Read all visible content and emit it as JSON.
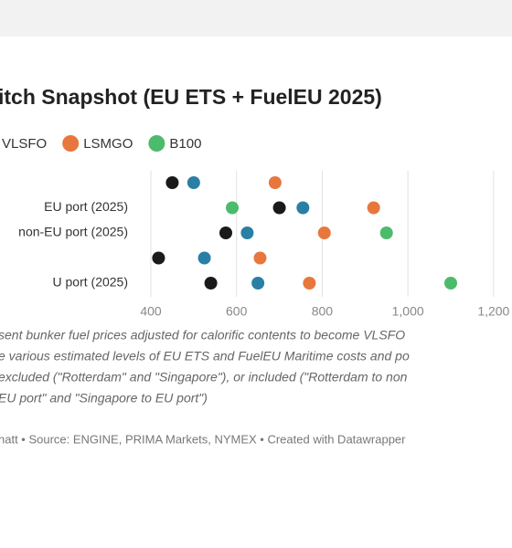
{
  "chart_data": {
    "type": "dot",
    "title": "itch Snapshot (EU ETS + FuelEU 2025)",
    "categories": [
      null,
      "EU port (2025)",
      "non-EU port (2025)",
      null,
      "U port (2025)"
    ],
    "series": [
      {
        "name": null,
        "color": "#1a1a1a",
        "values": [
          450,
          700,
          575,
          418,
          540
        ]
      },
      {
        "name": "VLSFO",
        "color": "#2a7fa4",
        "values": [
          500,
          755,
          625,
          525,
          650
        ]
      },
      {
        "name": "LSMGO",
        "color": "#e8773d",
        "values": [
          690,
          920,
          805,
          655,
          770
        ]
      },
      {
        "name": "B100",
        "color": "#4cbb6c",
        "values": [
          null,
          590,
          950,
          null,
          1100
        ]
      }
    ],
    "xlim": [
      368,
      1243
    ],
    "xticks": [
      400,
      600,
      800,
      {
        "value": 1000,
        "label": "1,000"
      },
      {
        "value": 1200,
        "label": "1,200"
      }
    ],
    "grid": true,
    "notes": [
      "sent bunker fuel prices adjusted for calorific contents to become VLSFO",
      "e various estimated levels of EU ETS and FuelEU Maritime costs and po",
      "excluded (\"Rotterdam\" and \"Singapore\"), or included (\"Rotterdam to non",
      "EU port\" and \"Singapore to EU port\")"
    ],
    "source": "hatt • Source: ENGINE, PRIMA Markets, NYMEX • Created with Datawrapper"
  }
}
